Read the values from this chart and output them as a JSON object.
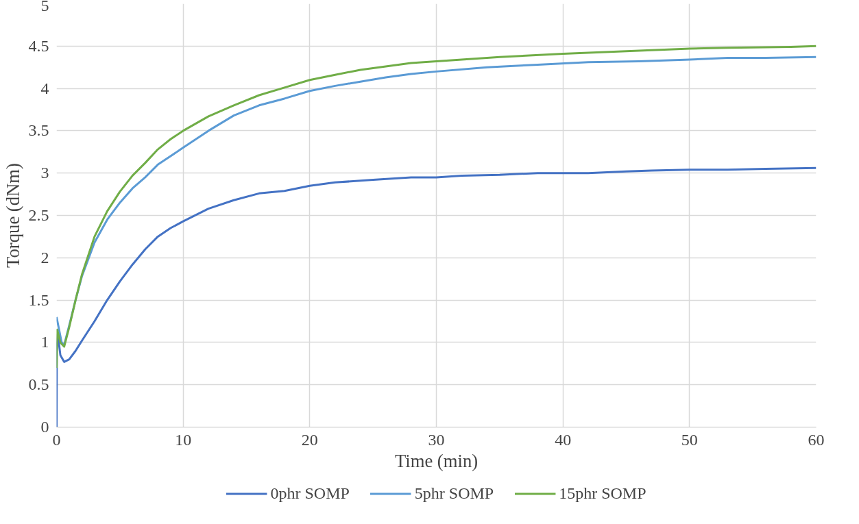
{
  "chart_data": {
    "type": "line",
    "xlabel": "Time (min)",
    "ylabel": "Torque (dNm)",
    "xlim": [
      0,
      60
    ],
    "xticks": [
      0,
      10,
      20,
      30,
      40,
      50,
      60
    ],
    "ylim": [
      0,
      5
    ],
    "yticks": [
      0,
      0.5,
      1,
      1.5,
      2,
      2.5,
      3,
      3.5,
      4,
      4.5,
      5
    ],
    "grid": true,
    "legend": "bottom",
    "marker": "none",
    "line_style": "solid",
    "series": [
      {
        "name": "0phr SOMP",
        "color": "#4472c4",
        "x": [
          0,
          0.02,
          0.1,
          0.3,
          0.6,
          1,
          1.5,
          2,
          3,
          4,
          5,
          6,
          7,
          8,
          9,
          10,
          12,
          14,
          16,
          18,
          20,
          22,
          25,
          28,
          30,
          32,
          35,
          38,
          42,
          45,
          47,
          50,
          53,
          56,
          60
        ],
        "values": [
          0,
          0.9,
          1.1,
          0.85,
          0.77,
          0.8,
          0.9,
          1.02,
          1.25,
          1.5,
          1.72,
          1.92,
          2.1,
          2.25,
          2.35,
          2.43,
          2.58,
          2.68,
          2.76,
          2.79,
          2.85,
          2.89,
          2.92,
          2.95,
          2.95,
          2.97,
          2.98,
          3.0,
          3.0,
          3.02,
          3.03,
          3.04,
          3.04,
          3.05,
          3.06
        ]
      },
      {
        "name": "5phr SOMP",
        "color": "#5b9bd5",
        "x": [
          0,
          0.2,
          0.4,
          0.6,
          1,
          1.5,
          2,
          3,
          4,
          5,
          6,
          7,
          8,
          9,
          10,
          12,
          14,
          16,
          18,
          20,
          22,
          24,
          26,
          28,
          30,
          34,
          38,
          42,
          46,
          50,
          53,
          56,
          60
        ],
        "values": [
          1.3,
          1.15,
          1.0,
          0.97,
          1.2,
          1.5,
          1.78,
          2.18,
          2.45,
          2.65,
          2.82,
          2.95,
          3.1,
          3.2,
          3.3,
          3.5,
          3.68,
          3.8,
          3.88,
          3.97,
          4.03,
          4.08,
          4.13,
          4.17,
          4.2,
          4.25,
          4.28,
          4.31,
          4.32,
          4.34,
          4.36,
          4.36,
          4.37
        ]
      },
      {
        "name": "15phr SOMP",
        "color": "#70ad47",
        "x": [
          0,
          0.05,
          0.3,
          0.6,
          1,
          1.5,
          2,
          3,
          4,
          5,
          6,
          7,
          8,
          9,
          10,
          12,
          14,
          16,
          18,
          20,
          22,
          24,
          26,
          28,
          30,
          35,
          40,
          45,
          50,
          53,
          58,
          60
        ],
        "values": [
          0.7,
          1.15,
          1.0,
          0.95,
          1.18,
          1.5,
          1.8,
          2.25,
          2.55,
          2.78,
          2.97,
          3.12,
          3.28,
          3.4,
          3.5,
          3.67,
          3.8,
          3.92,
          4.01,
          4.1,
          4.16,
          4.22,
          4.26,
          4.3,
          4.32,
          4.37,
          4.41,
          4.44,
          4.47,
          4.48,
          4.49,
          4.5
        ]
      }
    ]
  }
}
